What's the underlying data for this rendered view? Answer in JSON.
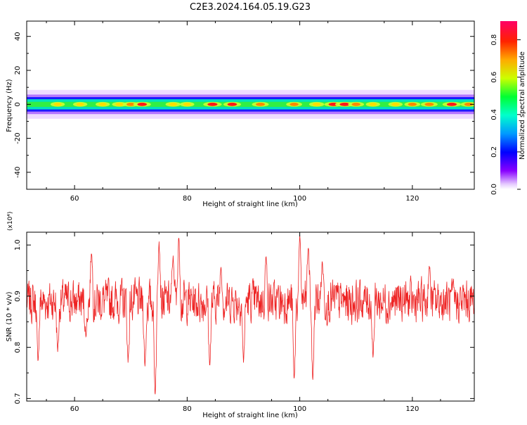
{
  "title": "C2E3.2024.164.05.19.G23",
  "colors": {
    "snr_line": "#ee2222",
    "axis": "#000000"
  },
  "chart_data": [
    {
      "type": "heatmap",
      "xlabel": "Height of straight line (km)",
      "ylabel": "Frequency (Hz)",
      "xlim": [
        51.5,
        131
      ],
      "ylim": [
        -50,
        49
      ],
      "xticks": [
        60,
        80,
        100,
        120
      ],
      "yticks": [
        -40,
        -20,
        0,
        20,
        40
      ],
      "band_center": 0,
      "band_halfwidth": 5,
      "hotspots": [
        {
          "x": 57,
          "v": 0.6
        },
        {
          "x": 61,
          "v": 0.6
        },
        {
          "x": 65,
          "v": 0.6
        },
        {
          "x": 68,
          "v": 0.65
        },
        {
          "x": 70,
          "v": 0.7
        },
        {
          "x": 72,
          "v": 0.8
        },
        {
          "x": 77.5,
          "v": 0.65
        },
        {
          "x": 80,
          "v": 0.6
        },
        {
          "x": 84.5,
          "v": 0.85
        },
        {
          "x": 88,
          "v": 0.8
        },
        {
          "x": 93,
          "v": 0.75
        },
        {
          "x": 99,
          "v": 0.7
        },
        {
          "x": 103,
          "v": 0.65
        },
        {
          "x": 106,
          "v": 0.85
        },
        {
          "x": 108,
          "v": 0.9
        },
        {
          "x": 110,
          "v": 0.7
        },
        {
          "x": 113,
          "v": 0.6
        },
        {
          "x": 117,
          "v": 0.6
        },
        {
          "x": 120,
          "v": 0.7
        },
        {
          "x": 123,
          "v": 0.75
        },
        {
          "x": 127,
          "v": 0.85
        },
        {
          "x": 130,
          "v": 0.7
        }
      ],
      "colorbar": {
        "label": "Normalized spectral amplitude",
        "range": [
          0,
          0.9
        ],
        "ticks": [
          0.0,
          0.2,
          0.4,
          0.6,
          0.8
        ]
      }
    },
    {
      "type": "line",
      "xlabel": "Height of straight line (km)",
      "ylabel": "SNR (10 * v/v)",
      "scale_label": "(x10⁴)",
      "xlim": [
        51.5,
        131
      ],
      "ylim": [
        0.695,
        1.025
      ],
      "xticks": [
        60,
        80,
        100,
        120
      ],
      "yticks": [
        0.7,
        0.8,
        0.9,
        1.0
      ],
      "baseline": 0.89,
      "spikes": [
        {
          "x": 53.5,
          "y": 0.77
        },
        {
          "x": 57.0,
          "y": 0.79
        },
        {
          "x": 62.0,
          "y": 0.82
        },
        {
          "x": 63.0,
          "y": 0.99
        },
        {
          "x": 69.5,
          "y": 0.77
        },
        {
          "x": 72.5,
          "y": 0.76
        },
        {
          "x": 74.3,
          "y": 0.7
        },
        {
          "x": 75.0,
          "y": 1.01
        },
        {
          "x": 77.5,
          "y": 0.98
        },
        {
          "x": 78.5,
          "y": 1.02
        },
        {
          "x": 84.0,
          "y": 0.76
        },
        {
          "x": 86.0,
          "y": 0.96
        },
        {
          "x": 90.0,
          "y": 0.77
        },
        {
          "x": 94.0,
          "y": 0.98
        },
        {
          "x": 99.0,
          "y": 0.73
        },
        {
          "x": 100.0,
          "y": 1.02
        },
        {
          "x": 101.5,
          "y": 1.0
        },
        {
          "x": 102.3,
          "y": 0.73
        },
        {
          "x": 104.0,
          "y": 0.97
        },
        {
          "x": 113.0,
          "y": 0.78
        },
        {
          "x": 123.0,
          "y": 0.96
        }
      ]
    }
  ]
}
